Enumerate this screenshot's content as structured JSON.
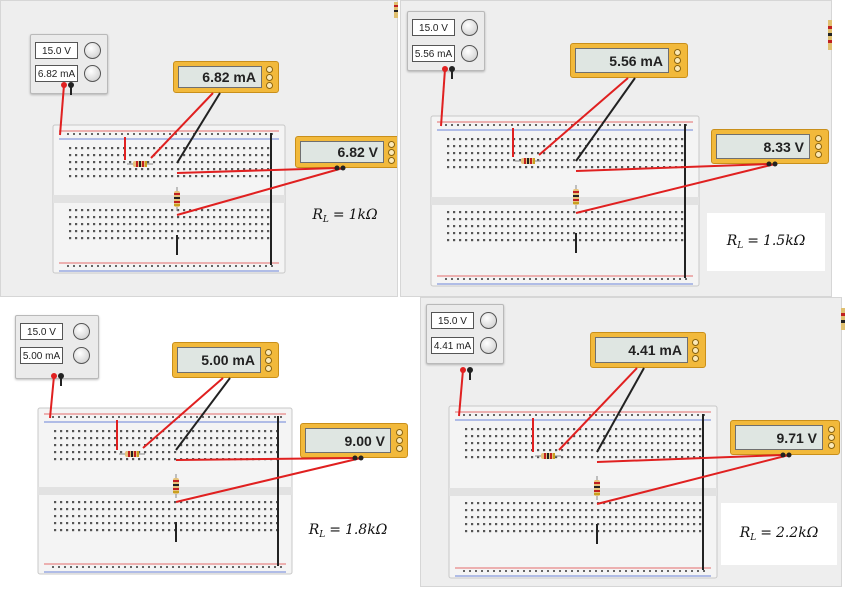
{
  "panels": [
    {
      "id": "p1",
      "psu": {
        "voltage": "15.0 V",
        "current": "6.82 mA"
      },
      "ammeter": "6.82 mA",
      "voltmeter": "6.82 V",
      "load": {
        "prefix": "R",
        "sub": "L",
        "eq": "=",
        "value": "1kΩ"
      }
    },
    {
      "id": "p2",
      "psu": {
        "voltage": "15.0 V",
        "current": "5.56 mA"
      },
      "ammeter": "5.56 mA",
      "voltmeter": "8.33 V",
      "load": {
        "prefix": "R",
        "sub": "L",
        "eq": "=",
        "value": "1.5kΩ"
      }
    },
    {
      "id": "p3",
      "psu": {
        "voltage": "15.0 V",
        "current": "5.00 mA"
      },
      "ammeter": "5.00 mA",
      "voltmeter": "9.00 V",
      "load": {
        "prefix": "R",
        "sub": "L",
        "eq": "=",
        "value": "1.8kΩ"
      }
    },
    {
      "id": "p4",
      "psu": {
        "voltage": "15.0 V",
        "current": "4.41 mA"
      },
      "ammeter": "4.41 mA",
      "voltmeter": "9.71 V",
      "load": {
        "prefix": "R",
        "sub": "L",
        "eq": "=",
        "value": "2.2kΩ"
      }
    }
  ],
  "colors": {
    "wire_red": "#e02020",
    "wire_black": "#222222",
    "meter_body": "#f2b93b",
    "board": "#f4f4f4",
    "rail_red": "#e04040",
    "rail_blue": "#4060d0"
  },
  "icons": [
    "power-supply-knob-icon",
    "multimeter-terminal-icon",
    "resistor-icon",
    "breadboard-icon"
  ]
}
